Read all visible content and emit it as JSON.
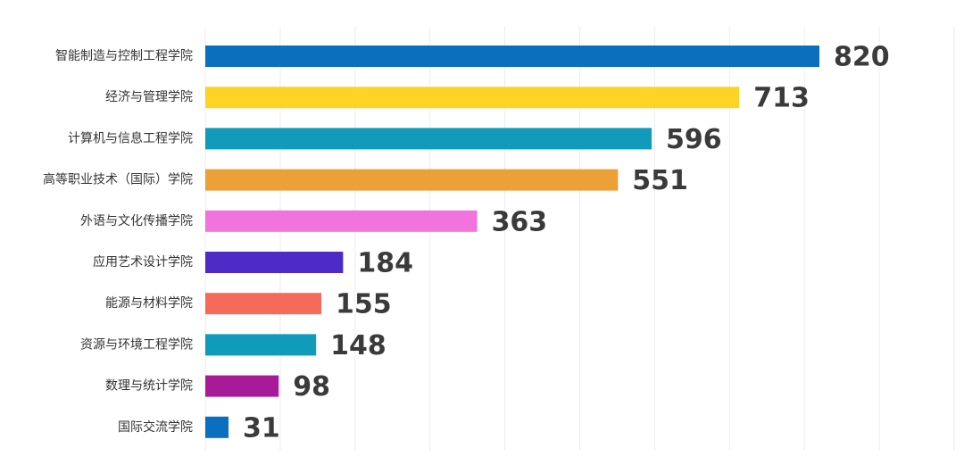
{
  "chart_data": {
    "type": "bar",
    "orientation": "horizontal",
    "title": "",
    "xlabel": "",
    "ylabel": "",
    "categories": [
      "智能制造与控制工程学院",
      "经济与管理学院",
      "计算机与信息工程学院",
      "高等职业技术（国际）学院",
      "外语与文化传播学院",
      "应用艺术设计学院",
      "能源与材料学院",
      "资源与环境工程学院",
      "数理与统计学院",
      "国际交流学院"
    ],
    "values": [
      820,
      713,
      596,
      551,
      363,
      184,
      155,
      148,
      98,
      31
    ],
    "value_labels": [
      "820",
      "713",
      "596",
      "551",
      "363",
      "184",
      "155",
      "148",
      "98",
      "31"
    ],
    "colors": [
      "#0a6fbf",
      "#fdd426",
      "#0f9bb9",
      "#eba038",
      "#f273dd",
      "#4e2ac7",
      "#f46b5c",
      "#0f9bb9",
      "#a71a98",
      "#0a6fbf"
    ],
    "xlim": [
      0,
      1000
    ],
    "grid": true,
    "legend": "none"
  }
}
